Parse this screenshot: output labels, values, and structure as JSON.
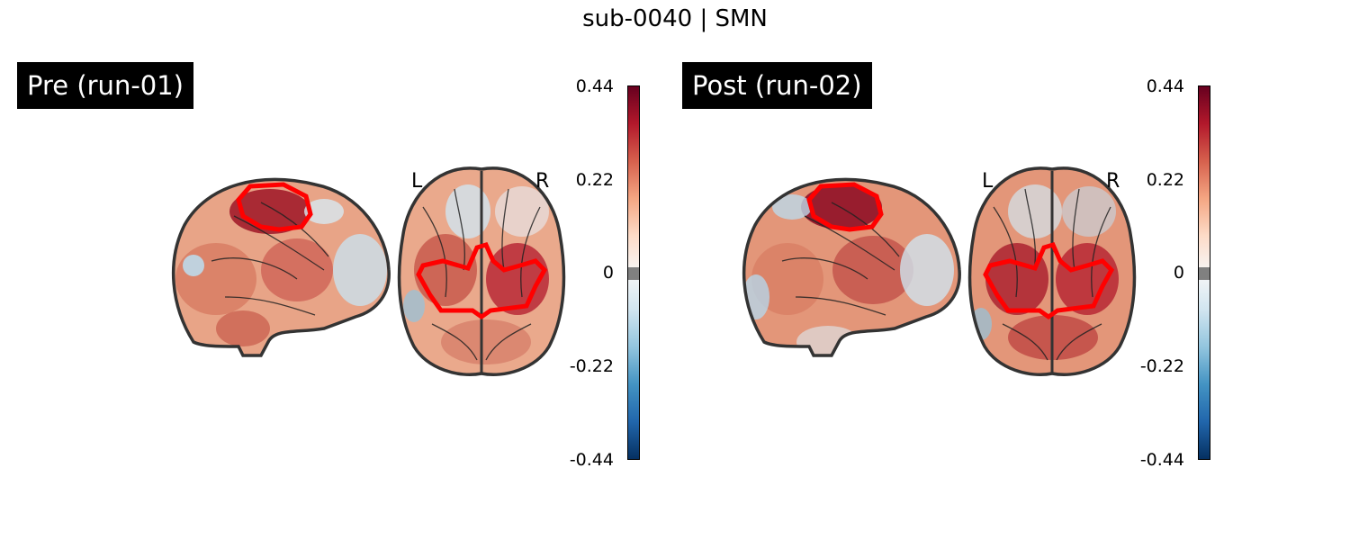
{
  "figure": {
    "title": "sub-0040 | SMN"
  },
  "colormap": {
    "name": "RdBu_r",
    "colors": [
      "#053061",
      "#2166ac",
      "#4393c3",
      "#92c5de",
      "#d1e5f0",
      "#f7f7f7",
      "#fddbc7",
      "#f4a582",
      "#d6604d",
      "#b2182b",
      "#67001f"
    ],
    "threshold_color": "#808080"
  },
  "roi_outline_color": "#ff0000",
  "panels": [
    {
      "label": "Pre (run-01)",
      "colorbar_ticks": [
        "0.44",
        "0.22",
        "0",
        "-0.22",
        "-0.44"
      ],
      "orientation_left": "L",
      "orientation_right": "R"
    },
    {
      "label": "Post (run-02)",
      "colorbar_ticks": [
        "0.44",
        "0.22",
        "0",
        "-0.22",
        "-0.44"
      ],
      "orientation_left": "L",
      "orientation_right": "R"
    }
  ]
}
